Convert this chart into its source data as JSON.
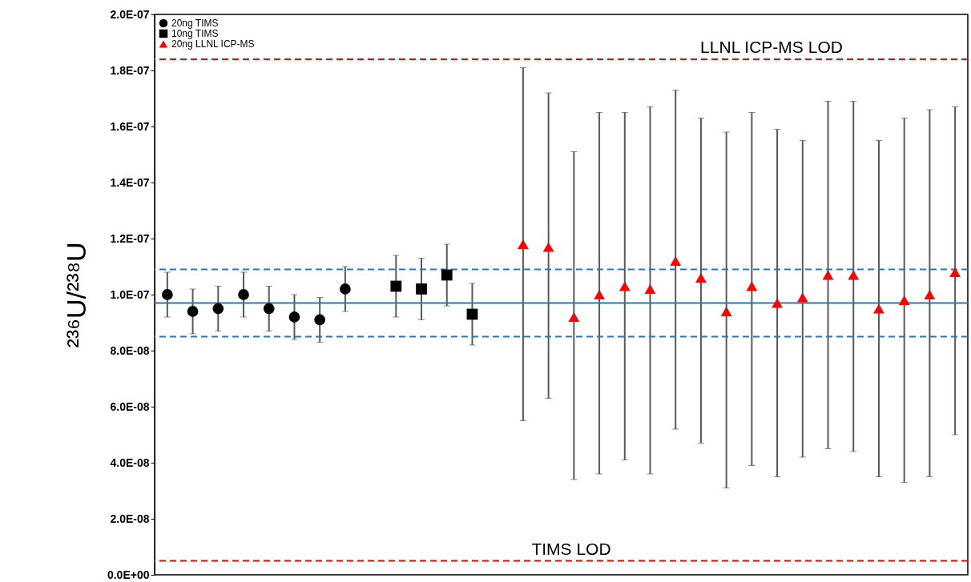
{
  "chart_data": {
    "type": "scatter",
    "ylabel": "²³⁶U/²³⁸U",
    "categories": [
      null,
      null,
      null,
      null,
      null,
      null,
      null,
      null,
      null,
      null,
      null,
      null,
      null,
      null,
      null,
      null,
      null,
      null,
      null,
      null,
      null,
      null,
      null,
      null,
      null,
      null,
      null,
      null,
      null,
      null,
      null,
      null
    ],
    "ylim": [
      0,
      2e-07
    ],
    "yticks": [
      {
        "value": 0,
        "label": "0.0E+00"
      },
      {
        "value": 2e-08,
        "label": "2.0E-08"
      },
      {
        "value": 4e-08,
        "label": "4.0E-08"
      },
      {
        "value": 6e-08,
        "label": "6.0E-08"
      },
      {
        "value": 8e-08,
        "label": "8.0E-08"
      },
      {
        "value": 1e-07,
        "label": "1.0E-07"
      },
      {
        "value": 1.2e-07,
        "label": "1.2E-07"
      },
      {
        "value": 1.4e-07,
        "label": "1.4E-07"
      },
      {
        "value": 1.6e-07,
        "label": "1.6E-07"
      },
      {
        "value": 1.8e-07,
        "label": "1.8E-07"
      },
      {
        "value": 2e-07,
        "label": "2.0E-07"
      }
    ],
    "tick_labels": "y",
    "grid": false,
    "legend": "top left",
    "series": [
      {
        "name": "20ng TIMS",
        "color": "#000000",
        "marker": "circle",
        "values": [
          1e-07,
          9.4e-08,
          9.5e-08,
          1e-07,
          9.5e-08,
          9.2e-08,
          9.1e-08,
          1.02e-07,
          null,
          null,
          null,
          null,
          null,
          null,
          null,
          null,
          null,
          null,
          null,
          null,
          null,
          null,
          null,
          null,
          null,
          null,
          null,
          null,
          null,
          null,
          null,
          null
        ],
        "errors": [
          8e-09,
          8e-09,
          8e-09,
          8e-09,
          8e-09,
          8e-09,
          8e-09,
          8e-09,
          null,
          null,
          null,
          null,
          null,
          null,
          null,
          null,
          null,
          null,
          null,
          null,
          null,
          null,
          null,
          null,
          null,
          null,
          null,
          null,
          null,
          null,
          null,
          null
        ]
      },
      {
        "name": "10ng TIMS",
        "color": "#000000",
        "marker": "square",
        "values": [
          null,
          null,
          null,
          null,
          null,
          null,
          null,
          null,
          null,
          1.03e-07,
          1.02e-07,
          1.07e-07,
          9.3e-08,
          null,
          null,
          null,
          null,
          null,
          null,
          null,
          null,
          null,
          null,
          null,
          null,
          null,
          null,
          null,
          null,
          null,
          null,
          null
        ],
        "errors": [
          null,
          null,
          null,
          null,
          null,
          null,
          null,
          null,
          null,
          1.1e-08,
          1.1e-08,
          1.1e-08,
          1.1e-08,
          null,
          null,
          null,
          null,
          null,
          null,
          null,
          null,
          null,
          null,
          null,
          null,
          null,
          null,
          null,
          null,
          null,
          null,
          null
        ]
      },
      {
        "name": "20ng LLNL ICP-MS",
        "color": "#ff0000",
        "marker": "triangle",
        "values": [
          null,
          null,
          null,
          null,
          null,
          null,
          null,
          null,
          null,
          null,
          null,
          null,
          null,
          null,
          1.18e-07,
          1.17e-07,
          9.2e-08,
          1e-07,
          1.03e-07,
          1.02e-07,
          1.12e-07,
          1.06e-07,
          9.4e-08,
          1.03e-07,
          9.7e-08,
          9.9e-08,
          1.07e-07,
          1.07e-07,
          9.5e-08,
          9.8e-08,
          1e-07,
          1.08e-07
        ],
        "errors": [
          null,
          null,
          null,
          null,
          null,
          null,
          null,
          null,
          null,
          null,
          null,
          null,
          null,
          null,
          [
            5.5e-08,
            1.81e-07
          ],
          [
            6.3e-08,
            1.72e-07
          ],
          [
            3.4e-08,
            1.51e-07
          ],
          [
            3.6e-08,
            1.65e-07
          ],
          [
            4.1e-08,
            1.65e-07
          ],
          [
            3.6e-08,
            1.67e-07
          ],
          [
            5.2e-08,
            1.73e-07
          ],
          [
            4.7e-08,
            1.63e-07
          ],
          [
            3.1e-08,
            1.58e-07
          ],
          [
            3.9e-08,
            1.65e-07
          ],
          [
            3.5e-08,
            1.59e-07
          ],
          [
            4.2e-08,
            1.55e-07
          ],
          [
            4.5e-08,
            1.69e-07
          ],
          [
            4.4e-08,
            1.69e-07
          ],
          [
            3.5e-08,
            1.55e-07
          ],
          [
            3.3e-08,
            1.63e-07
          ],
          [
            3.5e-08,
            1.66e-07
          ],
          [
            5e-08,
            1.67e-07
          ]
        ]
      }
    ],
    "ref_lines": [
      {
        "axis": "y",
        "value": 9.7e-08,
        "label": null,
        "color": "#2e75b6",
        "line_style": "solid"
      },
      {
        "axis": "y",
        "value": 1.09e-07,
        "label": null,
        "color": "#2e75b6",
        "line_style": "dashed"
      },
      {
        "axis": "y",
        "value": 8.5e-08,
        "label": null,
        "color": "#2e75b6",
        "line_style": "dashed"
      },
      {
        "axis": "y",
        "value": 1.84e-07,
        "label": "LLNL ICP-MS LOD",
        "color": "#ff0000",
        "line_style": "dashed"
      },
      {
        "axis": "y",
        "value": 5e-09,
        "label": "TIMS LOD",
        "color": "#ff0000",
        "line_style": "dashed"
      }
    ]
  }
}
